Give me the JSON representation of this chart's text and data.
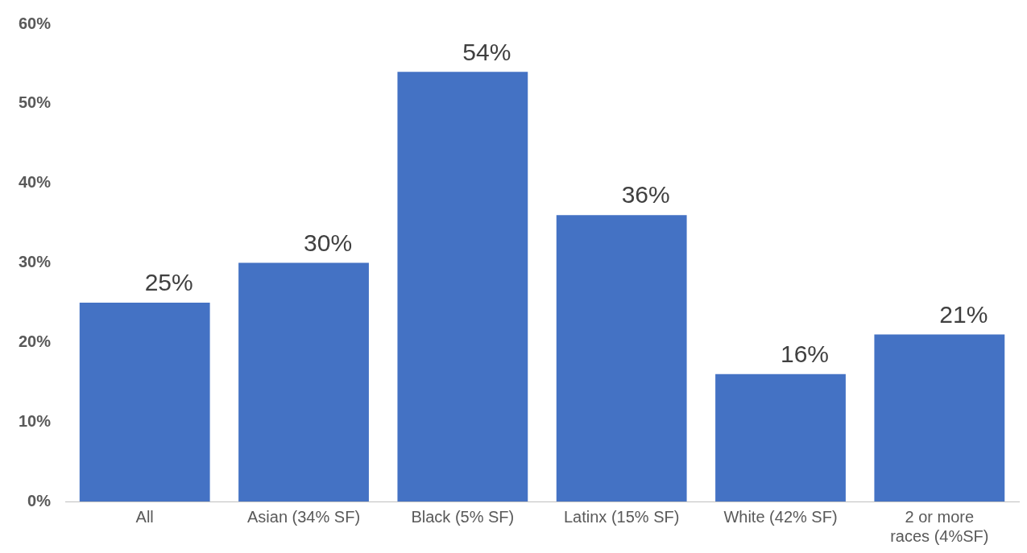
{
  "chart_data": {
    "type": "bar",
    "categories": [
      "All",
      "Asian (34% SF)",
      "Black (5% SF)",
      "Latinx (15% SF)",
      "White (42% SF)",
      "2 or more races (4%SF)"
    ],
    "values": [
      25,
      30,
      54,
      36,
      16,
      21
    ],
    "value_labels": [
      "25%",
      "30%",
      "54%",
      "36%",
      "16%",
      "21%"
    ],
    "color": "#4472c4",
    "ylim": [
      0,
      60
    ],
    "yticks": [
      {
        "value": 0,
        "label": "0%"
      },
      {
        "value": 10,
        "label": "10%"
      },
      {
        "value": 20,
        "label": "20%"
      },
      {
        "value": 30,
        "label": "30%"
      },
      {
        "value": 40,
        "label": "40%"
      },
      {
        "value": 50,
        "label": "50%"
      },
      {
        "value": 60,
        "label": "60%"
      }
    ],
    "grid": false,
    "legend": false
  }
}
